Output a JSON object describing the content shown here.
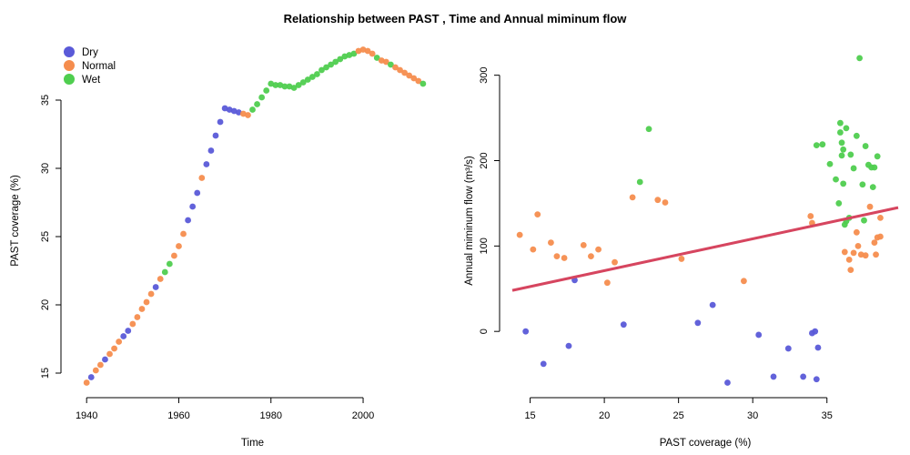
{
  "title": "Relationship between PAST , Time and Annual miminum flow",
  "colors": {
    "Dry": "#5a5ad8",
    "Normal": "#f58d4e",
    "Wet": "#4fce4f",
    "fit": "#d6455f"
  },
  "chart_data": [
    {
      "type": "scatter",
      "xlabel": "Time",
      "ylabel": "PAST coverage (%)",
      "xlim": [
        1937,
        2015
      ],
      "ylim": [
        13.8,
        39.2
      ],
      "xticks": [
        1940,
        1960,
        1980,
        2000
      ],
      "yticks": [
        15,
        20,
        25,
        30,
        35
      ],
      "legend": {
        "position": "top-left",
        "entries": [
          "Dry",
          "Normal",
          "Wet"
        ]
      },
      "points": [
        {
          "x": 1940,
          "y": 14.3,
          "c": "Normal"
        },
        {
          "x": 1941,
          "y": 14.7,
          "c": "Dry"
        },
        {
          "x": 1942,
          "y": 15.2,
          "c": "Normal"
        },
        {
          "x": 1943,
          "y": 15.6,
          "c": "Normal"
        },
        {
          "x": 1944,
          "y": 16.0,
          "c": "Dry"
        },
        {
          "x": 1945,
          "y": 16.4,
          "c": "Normal"
        },
        {
          "x": 1946,
          "y": 16.8,
          "c": "Normal"
        },
        {
          "x": 1947,
          "y": 17.3,
          "c": "Normal"
        },
        {
          "x": 1948,
          "y": 17.7,
          "c": "Dry"
        },
        {
          "x": 1949,
          "y": 18.1,
          "c": "Dry"
        },
        {
          "x": 1950,
          "y": 18.6,
          "c": "Normal"
        },
        {
          "x": 1951,
          "y": 19.1,
          "c": "Normal"
        },
        {
          "x": 1952,
          "y": 19.7,
          "c": "Normal"
        },
        {
          "x": 1953,
          "y": 20.2,
          "c": "Normal"
        },
        {
          "x": 1954,
          "y": 20.8,
          "c": "Normal"
        },
        {
          "x": 1955,
          "y": 21.3,
          "c": "Dry"
        },
        {
          "x": 1956,
          "y": 21.9,
          "c": "Normal"
        },
        {
          "x": 1957,
          "y": 22.4,
          "c": "Wet"
        },
        {
          "x": 1958,
          "y": 23.0,
          "c": "Wet"
        },
        {
          "x": 1959,
          "y": 23.6,
          "c": "Normal"
        },
        {
          "x": 1960,
          "y": 24.3,
          "c": "Normal"
        },
        {
          "x": 1961,
          "y": 25.2,
          "c": "Normal"
        },
        {
          "x": 1962,
          "y": 26.2,
          "c": "Dry"
        },
        {
          "x": 1963,
          "y": 27.2,
          "c": "Dry"
        },
        {
          "x": 1964,
          "y": 28.2,
          "c": "Dry"
        },
        {
          "x": 1965,
          "y": 29.3,
          "c": "Normal"
        },
        {
          "x": 1966,
          "y": 30.3,
          "c": "Dry"
        },
        {
          "x": 1967,
          "y": 31.3,
          "c": "Dry"
        },
        {
          "x": 1968,
          "y": 32.4,
          "c": "Dry"
        },
        {
          "x": 1969,
          "y": 33.4,
          "c": "Dry"
        },
        {
          "x": 1970,
          "y": 34.4,
          "c": "Dry"
        },
        {
          "x": 1971,
          "y": 34.3,
          "c": "Dry"
        },
        {
          "x": 1972,
          "y": 34.2,
          "c": "Dry"
        },
        {
          "x": 1973,
          "y": 34.1,
          "c": "Dry"
        },
        {
          "x": 1974,
          "y": 34.0,
          "c": "Normal"
        },
        {
          "x": 1975,
          "y": 33.9,
          "c": "Normal"
        },
        {
          "x": 1976,
          "y": 34.3,
          "c": "Wet"
        },
        {
          "x": 1977,
          "y": 34.7,
          "c": "Wet"
        },
        {
          "x": 1978,
          "y": 35.2,
          "c": "Wet"
        },
        {
          "x": 1979,
          "y": 35.7,
          "c": "Wet"
        },
        {
          "x": 1980,
          "y": 36.2,
          "c": "Wet"
        },
        {
          "x": 1981,
          "y": 36.1,
          "c": "Wet"
        },
        {
          "x": 1982,
          "y": 36.1,
          "c": "Wet"
        },
        {
          "x": 1983,
          "y": 36.0,
          "c": "Wet"
        },
        {
          "x": 1984,
          "y": 36.0,
          "c": "Wet"
        },
        {
          "x": 1985,
          "y": 35.9,
          "c": "Wet"
        },
        {
          "x": 1986,
          "y": 36.1,
          "c": "Wet"
        },
        {
          "x": 1987,
          "y": 36.3,
          "c": "Wet"
        },
        {
          "x": 1988,
          "y": 36.5,
          "c": "Wet"
        },
        {
          "x": 1989,
          "y": 36.7,
          "c": "Wet"
        },
        {
          "x": 1990,
          "y": 36.9,
          "c": "Wet"
        },
        {
          "x": 1991,
          "y": 37.2,
          "c": "Wet"
        },
        {
          "x": 1992,
          "y": 37.4,
          "c": "Wet"
        },
        {
          "x": 1993,
          "y": 37.6,
          "c": "Wet"
        },
        {
          "x": 1994,
          "y": 37.8,
          "c": "Wet"
        },
        {
          "x": 1995,
          "y": 38.0,
          "c": "Wet"
        },
        {
          "x": 1996,
          "y": 38.2,
          "c": "Wet"
        },
        {
          "x": 1997,
          "y": 38.3,
          "c": "Wet"
        },
        {
          "x": 1998,
          "y": 38.4,
          "c": "Wet"
        },
        {
          "x": 1999,
          "y": 38.6,
          "c": "Normal"
        },
        {
          "x": 2000,
          "y": 38.7,
          "c": "Normal"
        },
        {
          "x": 2001,
          "y": 38.6,
          "c": "Normal"
        },
        {
          "x": 2002,
          "y": 38.4,
          "c": "Normal"
        },
        {
          "x": 2003,
          "y": 38.1,
          "c": "Wet"
        },
        {
          "x": 2004,
          "y": 37.9,
          "c": "Normal"
        },
        {
          "x": 2005,
          "y": 37.8,
          "c": "Normal"
        },
        {
          "x": 2006,
          "y": 37.6,
          "c": "Wet"
        },
        {
          "x": 2007,
          "y": 37.4,
          "c": "Normal"
        },
        {
          "x": 2008,
          "y": 37.2,
          "c": "Normal"
        },
        {
          "x": 2009,
          "y": 37.0,
          "c": "Normal"
        },
        {
          "x": 2010,
          "y": 36.8,
          "c": "Normal"
        },
        {
          "x": 2011,
          "y": 36.6,
          "c": "Normal"
        },
        {
          "x": 2012,
          "y": 36.4,
          "c": "Normal"
        },
        {
          "x": 2013,
          "y": 36.2,
          "c": "Wet"
        }
      ]
    },
    {
      "type": "scatter",
      "xlabel": "PAST coverage (%)",
      "ylabel": "Annual miminum flow (m³/s)",
      "xlim": [
        13.8,
        39.8
      ],
      "ylim": [
        -68,
        338
      ],
      "xticks": [
        15,
        20,
        25,
        30,
        35
      ],
      "yticks": [
        0,
        100,
        200,
        300
      ],
      "fit_line": {
        "x": [
          13.8,
          39.8
        ],
        "y": [
          48,
          145
        ]
      },
      "points": [
        {
          "x": 14.3,
          "y": 113,
          "c": "Normal"
        },
        {
          "x": 14.7,
          "y": 0,
          "c": "Dry"
        },
        {
          "x": 15.2,
          "y": 96,
          "c": "Normal"
        },
        {
          "x": 15.5,
          "y": 137,
          "c": "Normal"
        },
        {
          "x": 15.9,
          "y": -38,
          "c": "Dry"
        },
        {
          "x": 16.4,
          "y": 104,
          "c": "Normal"
        },
        {
          "x": 16.8,
          "y": 88,
          "c": "Normal"
        },
        {
          "x": 17.3,
          "y": 86,
          "c": "Normal"
        },
        {
          "x": 17.6,
          "y": -17,
          "c": "Dry"
        },
        {
          "x": 18.0,
          "y": 60,
          "c": "Dry"
        },
        {
          "x": 18.6,
          "y": 101,
          "c": "Normal"
        },
        {
          "x": 19.1,
          "y": 88,
          "c": "Normal"
        },
        {
          "x": 19.6,
          "y": 96,
          "c": "Normal"
        },
        {
          "x": 20.2,
          "y": 57,
          "c": "Normal"
        },
        {
          "x": 20.7,
          "y": 81,
          "c": "Normal"
        },
        {
          "x": 21.3,
          "y": 8,
          "c": "Dry"
        },
        {
          "x": 21.9,
          "y": 157,
          "c": "Normal"
        },
        {
          "x": 22.4,
          "y": 175,
          "c": "Wet"
        },
        {
          "x": 23.0,
          "y": 237,
          "c": "Wet"
        },
        {
          "x": 23.6,
          "y": 154,
          "c": "Normal"
        },
        {
          "x": 24.1,
          "y": 151,
          "c": "Normal"
        },
        {
          "x": 25.2,
          "y": 85,
          "c": "Normal"
        },
        {
          "x": 26.3,
          "y": 10,
          "c": "Dry"
        },
        {
          "x": 27.3,
          "y": 31,
          "c": "Dry"
        },
        {
          "x": 28.3,
          "y": -60,
          "c": "Dry"
        },
        {
          "x": 29.4,
          "y": 59,
          "c": "Normal"
        },
        {
          "x": 30.4,
          "y": -4,
          "c": "Dry"
        },
        {
          "x": 31.4,
          "y": -53,
          "c": "Dry"
        },
        {
          "x": 32.4,
          "y": -20,
          "c": "Dry"
        },
        {
          "x": 33.4,
          "y": -53,
          "c": "Dry"
        },
        {
          "x": 34.0,
          "y": -2,
          "c": "Dry"
        },
        {
          "x": 34.2,
          "y": 0,
          "c": "Dry"
        },
        {
          "x": 34.3,
          "y": -56,
          "c": "Dry"
        },
        {
          "x": 34.4,
          "y": -19,
          "c": "Dry"
        },
        {
          "x": 33.9,
          "y": 135,
          "c": "Normal"
        },
        {
          "x": 34.0,
          "y": 127,
          "c": "Normal"
        },
        {
          "x": 34.3,
          "y": 218,
          "c": "Wet"
        },
        {
          "x": 34.7,
          "y": 219,
          "c": "Wet"
        },
        {
          "x": 35.2,
          "y": 196,
          "c": "Wet"
        },
        {
          "x": 35.6,
          "y": 178,
          "c": "Wet"
        },
        {
          "x": 35.8,
          "y": 150,
          "c": "Wet"
        },
        {
          "x": 35.9,
          "y": 244,
          "c": "Wet"
        },
        {
          "x": 35.9,
          "y": 233,
          "c": "Wet"
        },
        {
          "x": 36.0,
          "y": 221,
          "c": "Wet"
        },
        {
          "x": 36.0,
          "y": 206,
          "c": "Wet"
        },
        {
          "x": 36.1,
          "y": 213,
          "c": "Wet"
        },
        {
          "x": 36.1,
          "y": 173,
          "c": "Wet"
        },
        {
          "x": 36.2,
          "y": 125,
          "c": "Wet"
        },
        {
          "x": 36.3,
          "y": 129,
          "c": "Wet"
        },
        {
          "x": 36.3,
          "y": 238,
          "c": "Wet"
        },
        {
          "x": 36.5,
          "y": 133,
          "c": "Wet"
        },
        {
          "x": 36.6,
          "y": 207,
          "c": "Wet"
        },
        {
          "x": 36.8,
          "y": 191,
          "c": "Wet"
        },
        {
          "x": 37.0,
          "y": 229,
          "c": "Wet"
        },
        {
          "x": 37.2,
          "y": 320,
          "c": "Wet"
        },
        {
          "x": 37.4,
          "y": 172,
          "c": "Wet"
        },
        {
          "x": 37.6,
          "y": 217,
          "c": "Wet"
        },
        {
          "x": 37.8,
          "y": 195,
          "c": "Wet"
        },
        {
          "x": 38.0,
          "y": 192,
          "c": "Wet"
        },
        {
          "x": 38.1,
          "y": 169,
          "c": "Wet"
        },
        {
          "x": 38.2,
          "y": 192,
          "c": "Wet"
        },
        {
          "x": 38.4,
          "y": 205,
          "c": "Wet"
        },
        {
          "x": 37.5,
          "y": 130,
          "c": "Wet"
        },
        {
          "x": 36.2,
          "y": 93,
          "c": "Normal"
        },
        {
          "x": 36.5,
          "y": 84,
          "c": "Normal"
        },
        {
          "x": 36.6,
          "y": 72,
          "c": "Normal"
        },
        {
          "x": 36.8,
          "y": 92,
          "c": "Normal"
        },
        {
          "x": 37.0,
          "y": 116,
          "c": "Normal"
        },
        {
          "x": 37.1,
          "y": 100,
          "c": "Normal"
        },
        {
          "x": 37.3,
          "y": 90,
          "c": "Normal"
        },
        {
          "x": 37.6,
          "y": 89,
          "c": "Normal"
        },
        {
          "x": 37.9,
          "y": 146,
          "c": "Normal"
        },
        {
          "x": 38.2,
          "y": 104,
          "c": "Normal"
        },
        {
          "x": 38.3,
          "y": 90,
          "c": "Normal"
        },
        {
          "x": 38.4,
          "y": 110,
          "c": "Normal"
        },
        {
          "x": 38.6,
          "y": 111,
          "c": "Normal"
        },
        {
          "x": 38.6,
          "y": 133,
          "c": "Normal"
        }
      ]
    }
  ]
}
